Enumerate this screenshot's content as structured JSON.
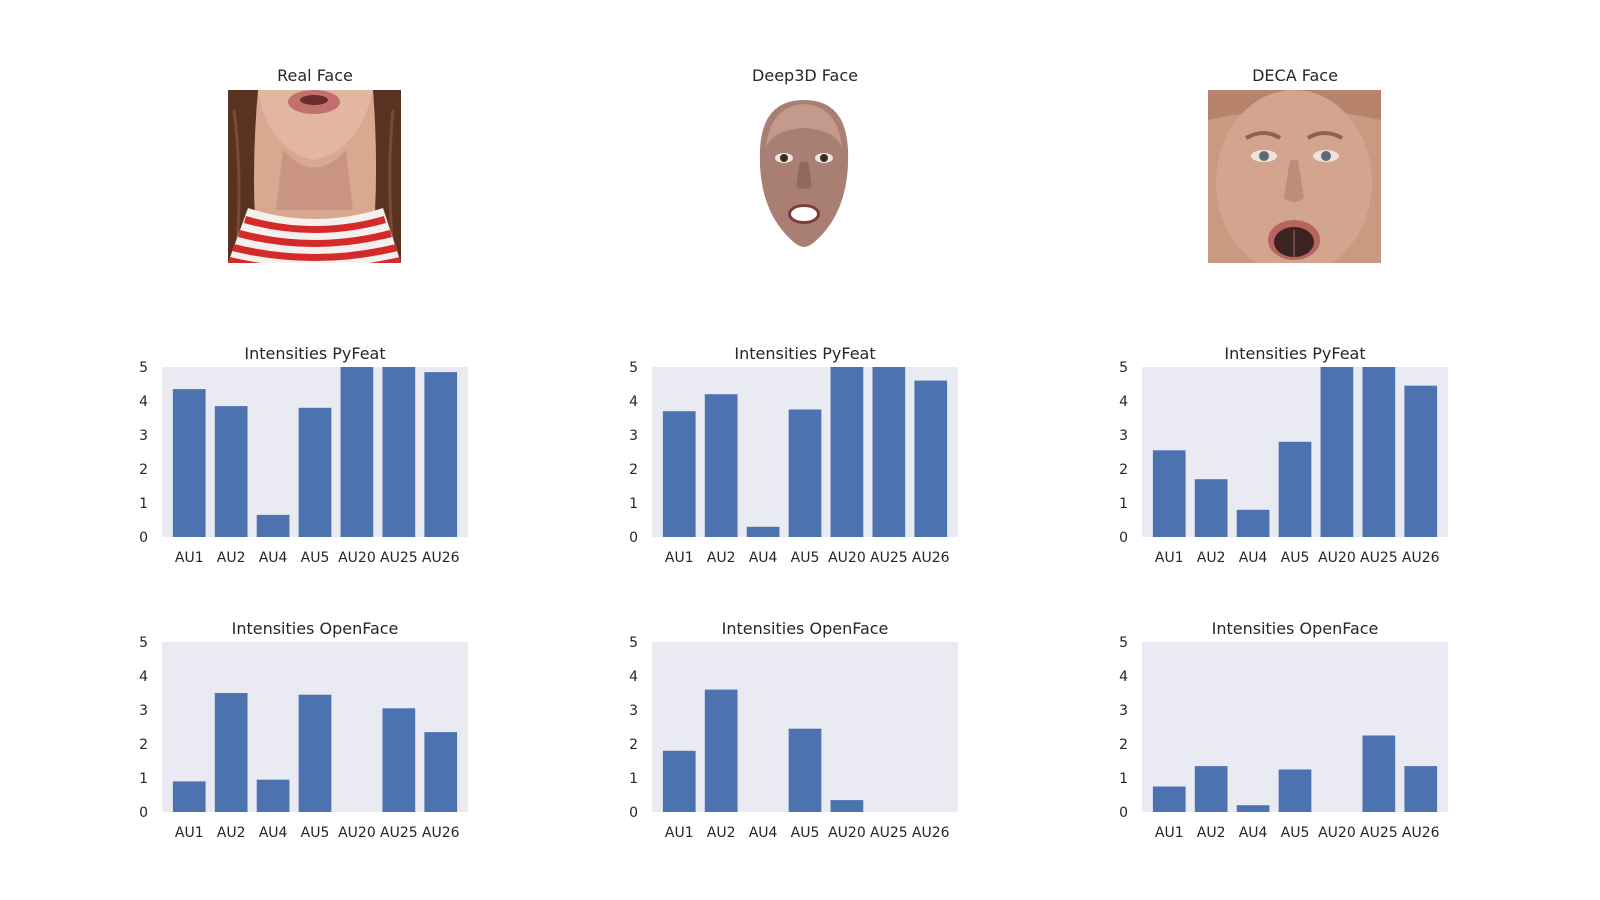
{
  "faces": [
    {
      "title": "Real Face"
    },
    {
      "title": "Deep3D Face"
    },
    {
      "title": "DECA Face"
    }
  ],
  "chart_data": [
    {
      "type": "bar",
      "title": "Intensities PyFeat",
      "categories": [
        "AU1",
        "AU2",
        "AU4",
        "AU5",
        "AU20",
        "AU25",
        "AU26"
      ],
      "values": [
        4.35,
        3.85,
        0.65,
        3.8,
        5.0,
        5.0,
        4.85
      ],
      "ylim": [
        0,
        5
      ],
      "yticks": [
        0,
        1,
        2,
        3,
        4,
        5
      ],
      "grid": false,
      "color": "#4c72b0"
    },
    {
      "type": "bar",
      "title": "Intensities PyFeat",
      "categories": [
        "AU1",
        "AU2",
        "AU4",
        "AU5",
        "AU20",
        "AU25",
        "AU26"
      ],
      "values": [
        3.7,
        4.2,
        0.3,
        3.75,
        5.0,
        5.0,
        4.6
      ],
      "ylim": [
        0,
        5
      ],
      "yticks": [
        0,
        1,
        2,
        3,
        4,
        5
      ],
      "grid": false,
      "color": "#4c72b0"
    },
    {
      "type": "bar",
      "title": "Intensities PyFeat",
      "categories": [
        "AU1",
        "AU2",
        "AU4",
        "AU5",
        "AU20",
        "AU25",
        "AU26"
      ],
      "values": [
        2.55,
        1.7,
        0.8,
        2.8,
        5.0,
        5.0,
        4.45
      ],
      "ylim": [
        0,
        5
      ],
      "yticks": [
        0,
        1,
        2,
        3,
        4,
        5
      ],
      "grid": false,
      "color": "#4c72b0"
    },
    {
      "type": "bar",
      "title": "Intensities OpenFace",
      "categories": [
        "AU1",
        "AU2",
        "AU4",
        "AU5",
        "AU20",
        "AU25",
        "AU26"
      ],
      "values": [
        0.9,
        3.5,
        0.95,
        3.45,
        0,
        3.05,
        2.35
      ],
      "ylim": [
        0,
        5
      ],
      "yticks": [
        0,
        1,
        2,
        3,
        4,
        5
      ],
      "grid": false,
      "color": "#4c72b0"
    },
    {
      "type": "bar",
      "title": "Intensities OpenFace",
      "categories": [
        "AU1",
        "AU2",
        "AU4",
        "AU5",
        "AU20",
        "AU25",
        "AU26"
      ],
      "values": [
        1.8,
        3.6,
        0,
        2.45,
        0.35,
        0,
        0
      ],
      "ylim": [
        0,
        5
      ],
      "yticks": [
        0,
        1,
        2,
        3,
        4,
        5
      ],
      "grid": false,
      "color": "#4c72b0"
    },
    {
      "type": "bar",
      "title": "Intensities OpenFace",
      "categories": [
        "AU1",
        "AU2",
        "AU4",
        "AU5",
        "AU20",
        "AU25",
        "AU26"
      ],
      "values": [
        0.75,
        1.35,
        0.2,
        1.25,
        0,
        2.25,
        1.35
      ],
      "ylim": [
        0,
        5
      ],
      "yticks": [
        0,
        1,
        2,
        3,
        4,
        5
      ],
      "grid": false,
      "color": "#4c72b0"
    }
  ]
}
